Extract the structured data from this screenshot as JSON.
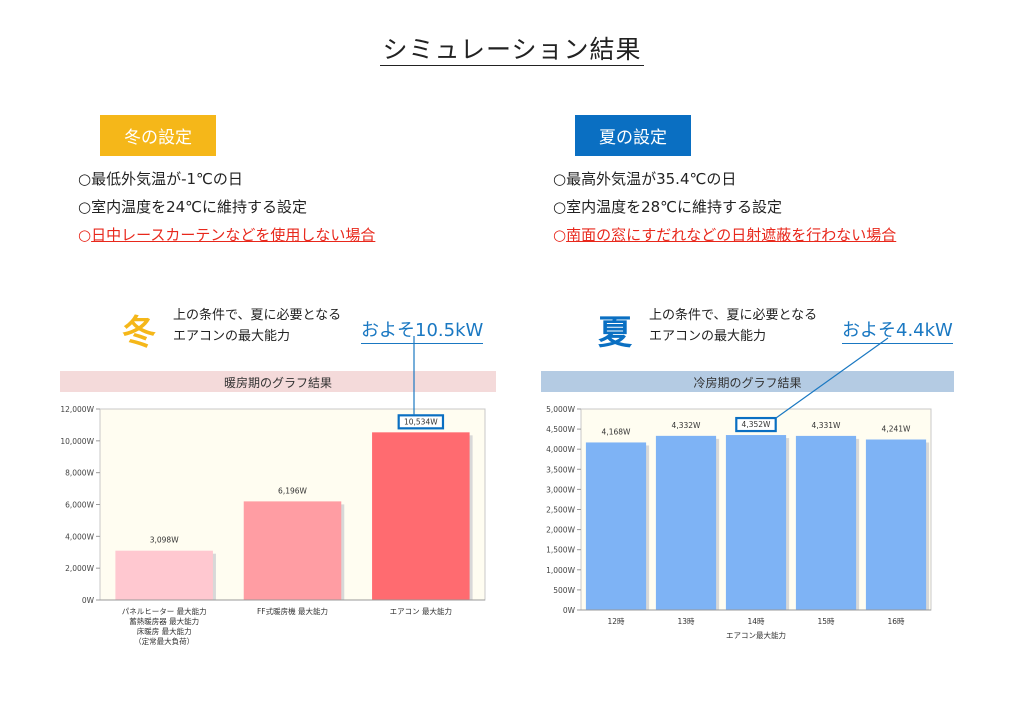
{
  "page_title": "シミュレーション結果",
  "winter": {
    "badge": "冬の設定",
    "conditions": [
      "○最低外気温が-1℃の日",
      "○室内温度を24℃に維持する設定"
    ],
    "condition_red_mark": "○",
    "condition_red_text": "日中レースカーテンなどを使用しない場合",
    "big_char": "冬",
    "lead_line1": "上の条件で、夏に必要となる",
    "lead_line2": "エアコンの最大能力",
    "approx": "およそ10.5kW",
    "color": "#f5b719"
  },
  "summer": {
    "badge": "夏の設定",
    "conditions": [
      "○最高外気温が35.4℃の日",
      "○室内温度を28℃に維持する設定"
    ],
    "condition_red_mark": "○",
    "condition_red_text": "南面の窓にすだれなどの日射遮蔽を行わない場合",
    "big_char": "夏",
    "lead_line1": "上の条件で、夏に必要となる",
    "lead_line2": "エアコンの最大能力",
    "approx": "およそ4.4kW",
    "color": "#0a6fc2"
  },
  "chart_data": [
    {
      "type": "bar",
      "title": "暖房期のグラフ結果",
      "categories": [
        "パネルヒーター 最大能力",
        "FF式暖房機 最大能力",
        "エアコン 最大能力"
      ],
      "category_note": [
        "蓄熱暖房器 最大能力",
        "床暖房 最大能力",
        "（定常最大負荷）"
      ],
      "values": [
        3098,
        6196,
        10534
      ],
      "data_labels": [
        "3,098W",
        "6,196W",
        "10,534W"
      ],
      "highlight_index": 2,
      "ylim": [
        0,
        12000
      ],
      "y_ticks": [
        0,
        2000,
        4000,
        6000,
        8000,
        10000,
        12000
      ],
      "y_tick_labels": [
        "0W",
        "2,000W",
        "4,000W",
        "6,000W",
        "8,000W",
        "10,000W",
        "12,000W"
      ],
      "bar_colors": [
        "#ffc8d0",
        "#ff9da3",
        "#ff6b70"
      ],
      "title_bg": "#f4dada",
      "plot_bg": "#fffdf1",
      "grid": false
    },
    {
      "type": "bar",
      "title": "冷房期のグラフ結果",
      "categories": [
        "12時",
        "13時",
        "14時",
        "15時",
        "16時"
      ],
      "xlabel": "エアコン最大能力",
      "values": [
        4168,
        4332,
        4352,
        4331,
        4241
      ],
      "data_labels": [
        "4,168W",
        "4,332W",
        "4,352W",
        "4,331W",
        "4,241W"
      ],
      "highlight_index": 2,
      "ylim": [
        0,
        5000
      ],
      "y_ticks": [
        0,
        500,
        1000,
        1500,
        2000,
        2500,
        3000,
        3500,
        4000,
        4500,
        5000
      ],
      "y_tick_labels": [
        "0W",
        "500W",
        "1,000W",
        "1,500W",
        "2,000W",
        "2,500W",
        "3,000W",
        "3,500W",
        "4,000W",
        "4,500W",
        "5,000W"
      ],
      "bar_colors": [
        "#7eb3f5",
        "#7eb3f5",
        "#7eb3f5",
        "#7eb3f5",
        "#7eb3f5"
      ],
      "title_bg": "#b4cbe3",
      "plot_bg": "#fffdf1",
      "grid": false
    }
  ]
}
